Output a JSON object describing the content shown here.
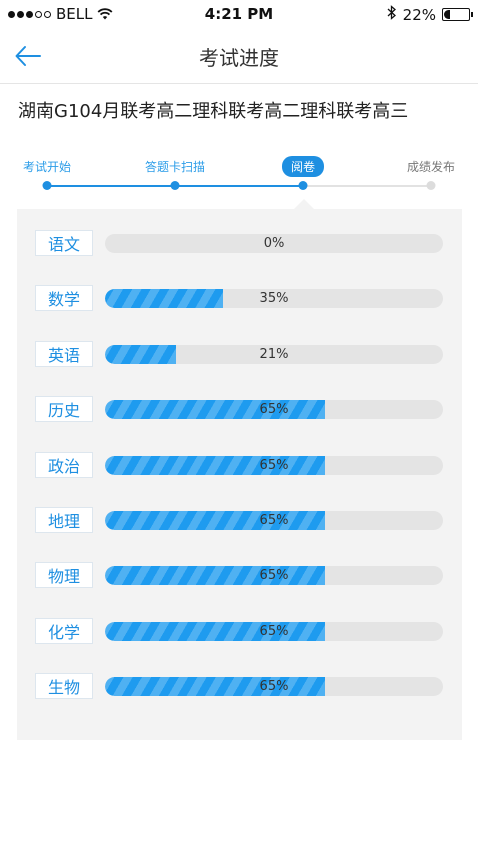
{
  "status_bar": {
    "carrier": "BELL",
    "time": "4:21 PM",
    "battery": "22%",
    "battery_level": 0.22,
    "icons": [
      "signal-dots-icon",
      "wifi-icon",
      "bluetooth-icon",
      "battery-icon"
    ]
  },
  "nav": {
    "title": "考试进度",
    "back_icon": "arrow-left-icon"
  },
  "exam": {
    "title": "湖南G104月联考高二理科联考高二理科联考高三"
  },
  "steps": [
    {
      "label": "考试开始",
      "state": "done"
    },
    {
      "label": "答题卡扫描",
      "state": "done"
    },
    {
      "label": "阅卷",
      "state": "active"
    },
    {
      "label": "成绩发布",
      "state": "future"
    }
  ],
  "colors": {
    "accent": "#1e8fe1",
    "bar": "#1e9bef",
    "track": "#e4e4e4",
    "panel": "#f3f3f3"
  },
  "subjects": [
    {
      "name": "语文",
      "percent": 0,
      "label": "0%"
    },
    {
      "name": "数学",
      "percent": 35,
      "label": "35%"
    },
    {
      "name": "英语",
      "percent": 21,
      "label": "21%"
    },
    {
      "name": "历史",
      "percent": 65,
      "label": "65%"
    },
    {
      "name": "政治",
      "percent": 65,
      "label": "65%"
    },
    {
      "name": "地理",
      "percent": 65,
      "label": "65%"
    },
    {
      "name": "物理",
      "percent": 65,
      "label": "65%"
    },
    {
      "name": "化学",
      "percent": 65,
      "label": "65%"
    },
    {
      "name": "生物",
      "percent": 65,
      "label": "65%"
    }
  ]
}
